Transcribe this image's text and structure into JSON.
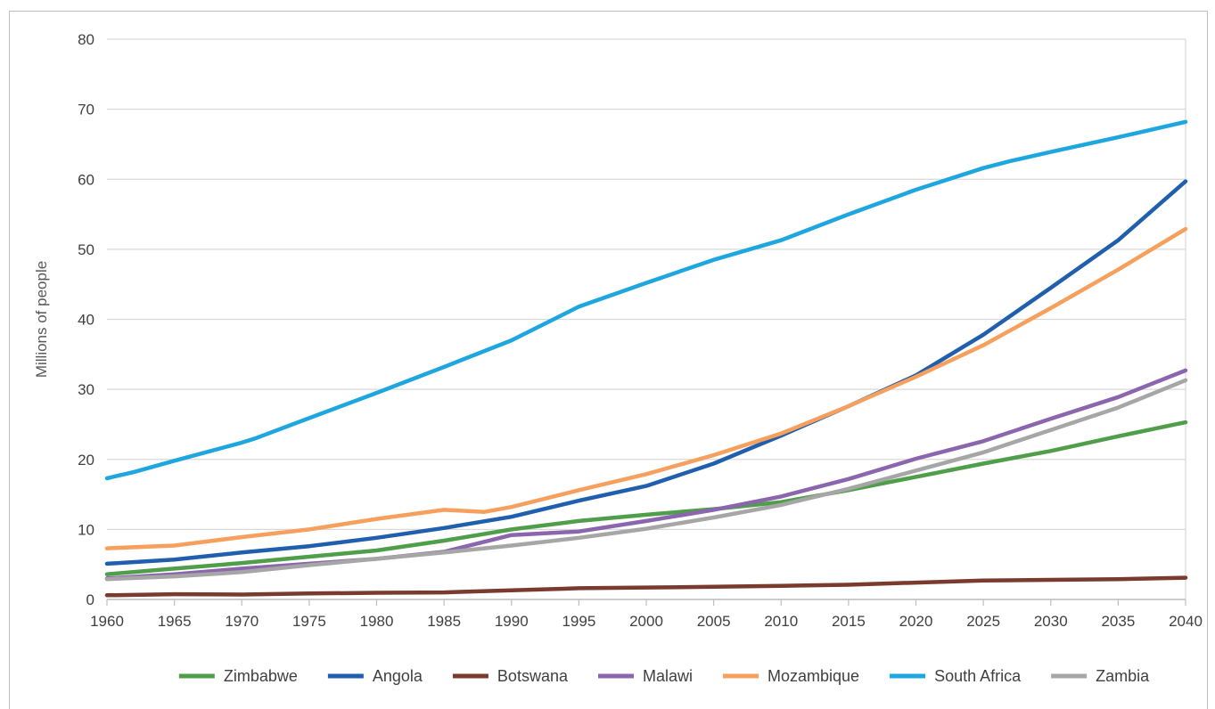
{
  "chart_data": {
    "type": "line",
    "title": "",
    "xlabel": "",
    "ylabel": "Millions of people",
    "xlim": [
      1960,
      2040
    ],
    "ylim": [
      0,
      80
    ],
    "x_ticks": [
      1960,
      1965,
      1970,
      1975,
      1980,
      1985,
      1990,
      1995,
      2000,
      2005,
      2010,
      2015,
      2020,
      2025,
      2030,
      2035,
      2040
    ],
    "y_ticks": [
      0,
      10,
      20,
      30,
      40,
      50,
      60,
      70,
      80
    ],
    "grid": "horizontal",
    "legend_position": "bottom",
    "series": [
      {
        "name": "Zimbabwe",
        "color": "#4f9e4a",
        "x": [
          1960,
          1965,
          1970,
          1975,
          1980,
          1985,
          1990,
          1995,
          2000,
          2005,
          2010,
          2015,
          2020,
          2025,
          2030,
          2035,
          2040
        ],
        "y": [
          3.6,
          4.4,
          5.2,
          6.1,
          7.0,
          8.4,
          10.0,
          11.2,
          12.1,
          12.9,
          13.9,
          15.6,
          17.5,
          19.4,
          21.2,
          23.3,
          25.3
        ]
      },
      {
        "name": "Angola",
        "color": "#1f5fad",
        "x": [
          1960,
          1965,
          1970,
          1975,
          1980,
          1985,
          1990,
          1995,
          2000,
          2005,
          2010,
          2015,
          2020,
          2025,
          2030,
          2035,
          2040
        ],
        "y": [
          5.1,
          5.7,
          6.7,
          7.6,
          8.8,
          10.2,
          11.8,
          14.1,
          16.2,
          19.4,
          23.4,
          27.6,
          32.0,
          37.8,
          44.5,
          51.3,
          59.7
        ]
      },
      {
        "name": "Botswana",
        "color": "#7b3a2e",
        "x": [
          1960,
          1965,
          1970,
          1975,
          1980,
          1985,
          1990,
          1995,
          2000,
          2005,
          2010,
          2015,
          2020,
          2025,
          2030,
          2035,
          2040
        ],
        "y": [
          0.6,
          0.75,
          0.7,
          0.85,
          0.95,
          1.0,
          1.3,
          1.6,
          1.7,
          1.8,
          1.95,
          2.1,
          2.4,
          2.7,
          2.8,
          2.9,
          3.1
        ]
      },
      {
        "name": "Malawi",
        "color": "#8b65ad",
        "x": [
          1960,
          1965,
          1970,
          1975,
          1980,
          1985,
          1990,
          1995,
          2000,
          2005,
          2010,
          2015,
          2020,
          2025,
          2030,
          2035,
          2040
        ],
        "y": [
          3.0,
          3.6,
          4.4,
          5.1,
          5.8,
          6.8,
          9.2,
          9.7,
          11.2,
          12.8,
          14.7,
          17.2,
          20.1,
          22.6,
          25.8,
          28.9,
          32.7
        ]
      },
      {
        "name": "Mozambique",
        "color": "#f7a05e",
        "x": [
          1960,
          1965,
          1970,
          1975,
          1980,
          1985,
          1988,
          1990,
          1995,
          2000,
          2005,
          2010,
          2015,
          2020,
          2025,
          2030,
          2035,
          2040
        ],
        "y": [
          7.3,
          7.7,
          8.9,
          10.0,
          11.5,
          12.8,
          12.5,
          13.2,
          15.6,
          17.9,
          20.6,
          23.7,
          27.6,
          31.8,
          36.3,
          41.6,
          47.1,
          52.9
        ]
      },
      {
        "name": "South Africa",
        "color": "#1ea6df",
        "x": [
          1960,
          1962,
          1965,
          1970,
          1971,
          1975,
          1980,
          1985,
          1990,
          1995,
          2000,
          2005,
          2010,
          2015,
          2020,
          2025,
          2027,
          2030,
          2035,
          2040
        ],
        "y": [
          17.3,
          18.2,
          19.8,
          22.4,
          23.0,
          25.9,
          29.5,
          33.2,
          37.0,
          41.8,
          45.2,
          48.5,
          51.3,
          55.0,
          58.5,
          61.6,
          62.6,
          63.9,
          66.0,
          68.2
        ]
      },
      {
        "name": "Zambia",
        "color": "#a6a6a6",
        "x": [
          1960,
          1965,
          1970,
          1975,
          1980,
          1985,
          1990,
          1995,
          2000,
          2005,
          2010,
          2015,
          2020,
          2025,
          2030,
          2035,
          2040
        ],
        "y": [
          2.9,
          3.3,
          3.9,
          4.9,
          5.8,
          6.7,
          7.7,
          8.8,
          10.1,
          11.7,
          13.5,
          15.8,
          18.4,
          21.0,
          24.2,
          27.4,
          31.3
        ]
      }
    ]
  }
}
